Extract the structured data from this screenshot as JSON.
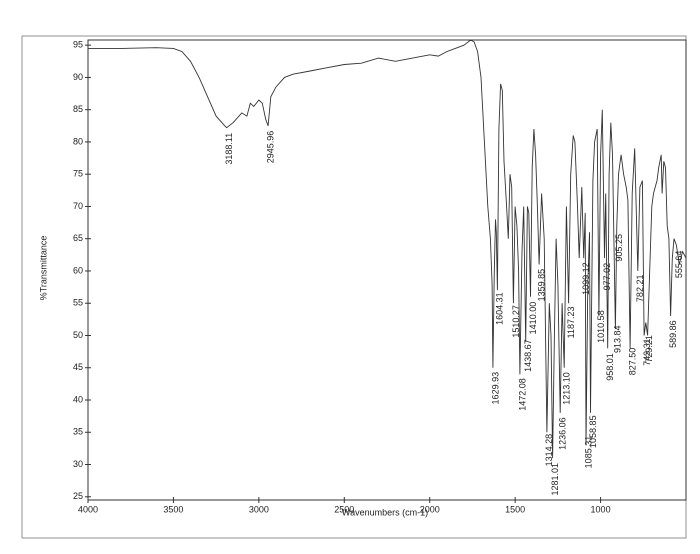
{
  "chart_data": {
    "type": "line",
    "x_label": "Wavenumbers (cm-1)",
    "y_label": "%Transmittance",
    "xlim": [
      4000,
      500
    ],
    "ylim": [
      24.5,
      95.8
    ],
    "xticks": [
      4000,
      3500,
      3000,
      2500,
      2000,
      1500,
      1000
    ],
    "yticks": [
      25,
      30,
      35,
      40,
      45,
      50,
      55,
      60,
      65,
      70,
      75,
      80,
      85,
      90,
      95
    ],
    "color": "#333333",
    "x": [
      4000,
      3800,
      3600,
      3500,
      3450,
      3400,
      3350,
      3300,
      3250,
      3200,
      3188,
      3150,
      3100,
      3070,
      3050,
      3030,
      3000,
      2980,
      2960,
      2946,
      2930,
      2900,
      2850,
      2800,
      2700,
      2600,
      2500,
      2400,
      2300,
      2200,
      2100,
      2000,
      1950,
      1900,
      1850,
      1800,
      1760,
      1740,
      1720,
      1700,
      1680,
      1660,
      1645,
      1635,
      1630,
      1622,
      1615,
      1610,
      1604,
      1595,
      1585,
      1575,
      1565,
      1550,
      1540,
      1530,
      1520,
      1510,
      1500,
      1490,
      1480,
      1472,
      1460,
      1450,
      1438,
      1428,
      1420,
      1410,
      1400,
      1390,
      1380,
      1370,
      1360,
      1345,
      1330,
      1314,
      1300,
      1290,
      1281,
      1270,
      1260,
      1250,
      1236,
      1225,
      1213,
      1200,
      1187,
      1175,
      1160,
      1150,
      1135,
      1125,
      1110,
      1099,
      1090,
      1085,
      1075,
      1065,
      1059,
      1045,
      1035,
      1020,
      1010,
      1000,
      990,
      977,
      970,
      958,
      950,
      940,
      930,
      913,
      905,
      895,
      880,
      865,
      850,
      840,
      827,
      815,
      800,
      782,
      770,
      755,
      745,
      735,
      725,
      710,
      700,
      690,
      680,
      670,
      660,
      645,
      640,
      630,
      620,
      610,
      600,
      590,
      580,
      570,
      556,
      540,
      520,
      500
    ],
    "values": [
      94.5,
      94.5,
      94.6,
      94.5,
      94,
      92.5,
      90,
      87,
      84,
      82.5,
      82.2,
      83,
      84.5,
      84,
      86,
      85.5,
      86.5,
      86,
      83.5,
      82.5,
      87,
      88.5,
      90,
      90.5,
      91,
      91.5,
      92,
      92.2,
      93,
      92.5,
      93,
      93.5,
      93.3,
      94,
      94.5,
      95,
      95.8,
      95.5,
      94,
      90,
      80,
      70,
      65,
      58,
      45,
      60,
      68,
      66,
      57,
      82,
      89,
      88,
      77,
      70,
      65,
      75,
      73,
      55,
      70,
      67,
      60,
      44,
      63,
      70,
      49,
      70,
      69,
      56,
      76,
      82,
      78,
      70,
      61,
      72,
      65,
      35,
      55,
      50,
      31,
      50,
      65,
      58,
      38,
      55,
      45,
      70,
      55,
      75,
      81,
      80,
      70,
      62,
      73,
      62,
      69,
      33,
      58,
      66,
      38,
      74,
      80,
      82,
      53,
      78,
      85,
      62,
      72,
      48,
      75,
      83,
      78,
      51,
      67,
      75,
      78,
      75,
      73,
      71,
      48,
      72,
      79,
      60,
      73,
      74,
      50,
      52,
      50,
      62,
      70,
      72,
      73,
      74,
      76,
      78,
      72,
      77,
      76,
      67,
      65,
      53,
      62,
      65,
      64,
      61,
      63,
      62
    ],
    "annotations": [
      {
        "value": 3188.11,
        "label": "3188.11"
      },
      {
        "value": 2945.96,
        "label": "2945.96"
      },
      {
        "value": 1629.93,
        "label": "1629.93"
      },
      {
        "value": 1604.31,
        "label": "1604.31"
      },
      {
        "value": 1510.27,
        "label": "1510.27"
      },
      {
        "value": 1472.08,
        "label": "1472.08"
      },
      {
        "value": 1438.67,
        "label": "1438.67"
      },
      {
        "value": 1410.0,
        "label": "1410.00"
      },
      {
        "value": 1359.85,
        "label": "1359.85"
      },
      {
        "value": 1314.28,
        "label": "1314.28"
      },
      {
        "value": 1281.01,
        "label": "1281.01"
      },
      {
        "value": 1236.06,
        "label": "1236.06"
      },
      {
        "value": 1213.1,
        "label": "1213.10"
      },
      {
        "value": 1187.23,
        "label": "1187.23"
      },
      {
        "value": 1099.12,
        "label": "1099.12"
      },
      {
        "value": 1085.31,
        "label": "1085.31"
      },
      {
        "value": 1058.85,
        "label": "1058.85"
      },
      {
        "value": 1010.58,
        "label": "1010.58"
      },
      {
        "value": 977.02,
        "label": "977.02"
      },
      {
        "value": 958.01,
        "label": "958.01"
      },
      {
        "value": 913.84,
        "label": "913.84"
      },
      {
        "value": 905.25,
        "label": "905.25"
      },
      {
        "value": 827.5,
        "label": "827.50"
      },
      {
        "value": 782.21,
        "label": "782.21"
      },
      {
        "value": 743.31,
        "label": "743.31"
      },
      {
        "value": 729.21,
        "label": "729.21"
      },
      {
        "value": 589.86,
        "label": "589.86"
      },
      {
        "value": 555.64,
        "label": "555.64"
      }
    ]
  }
}
